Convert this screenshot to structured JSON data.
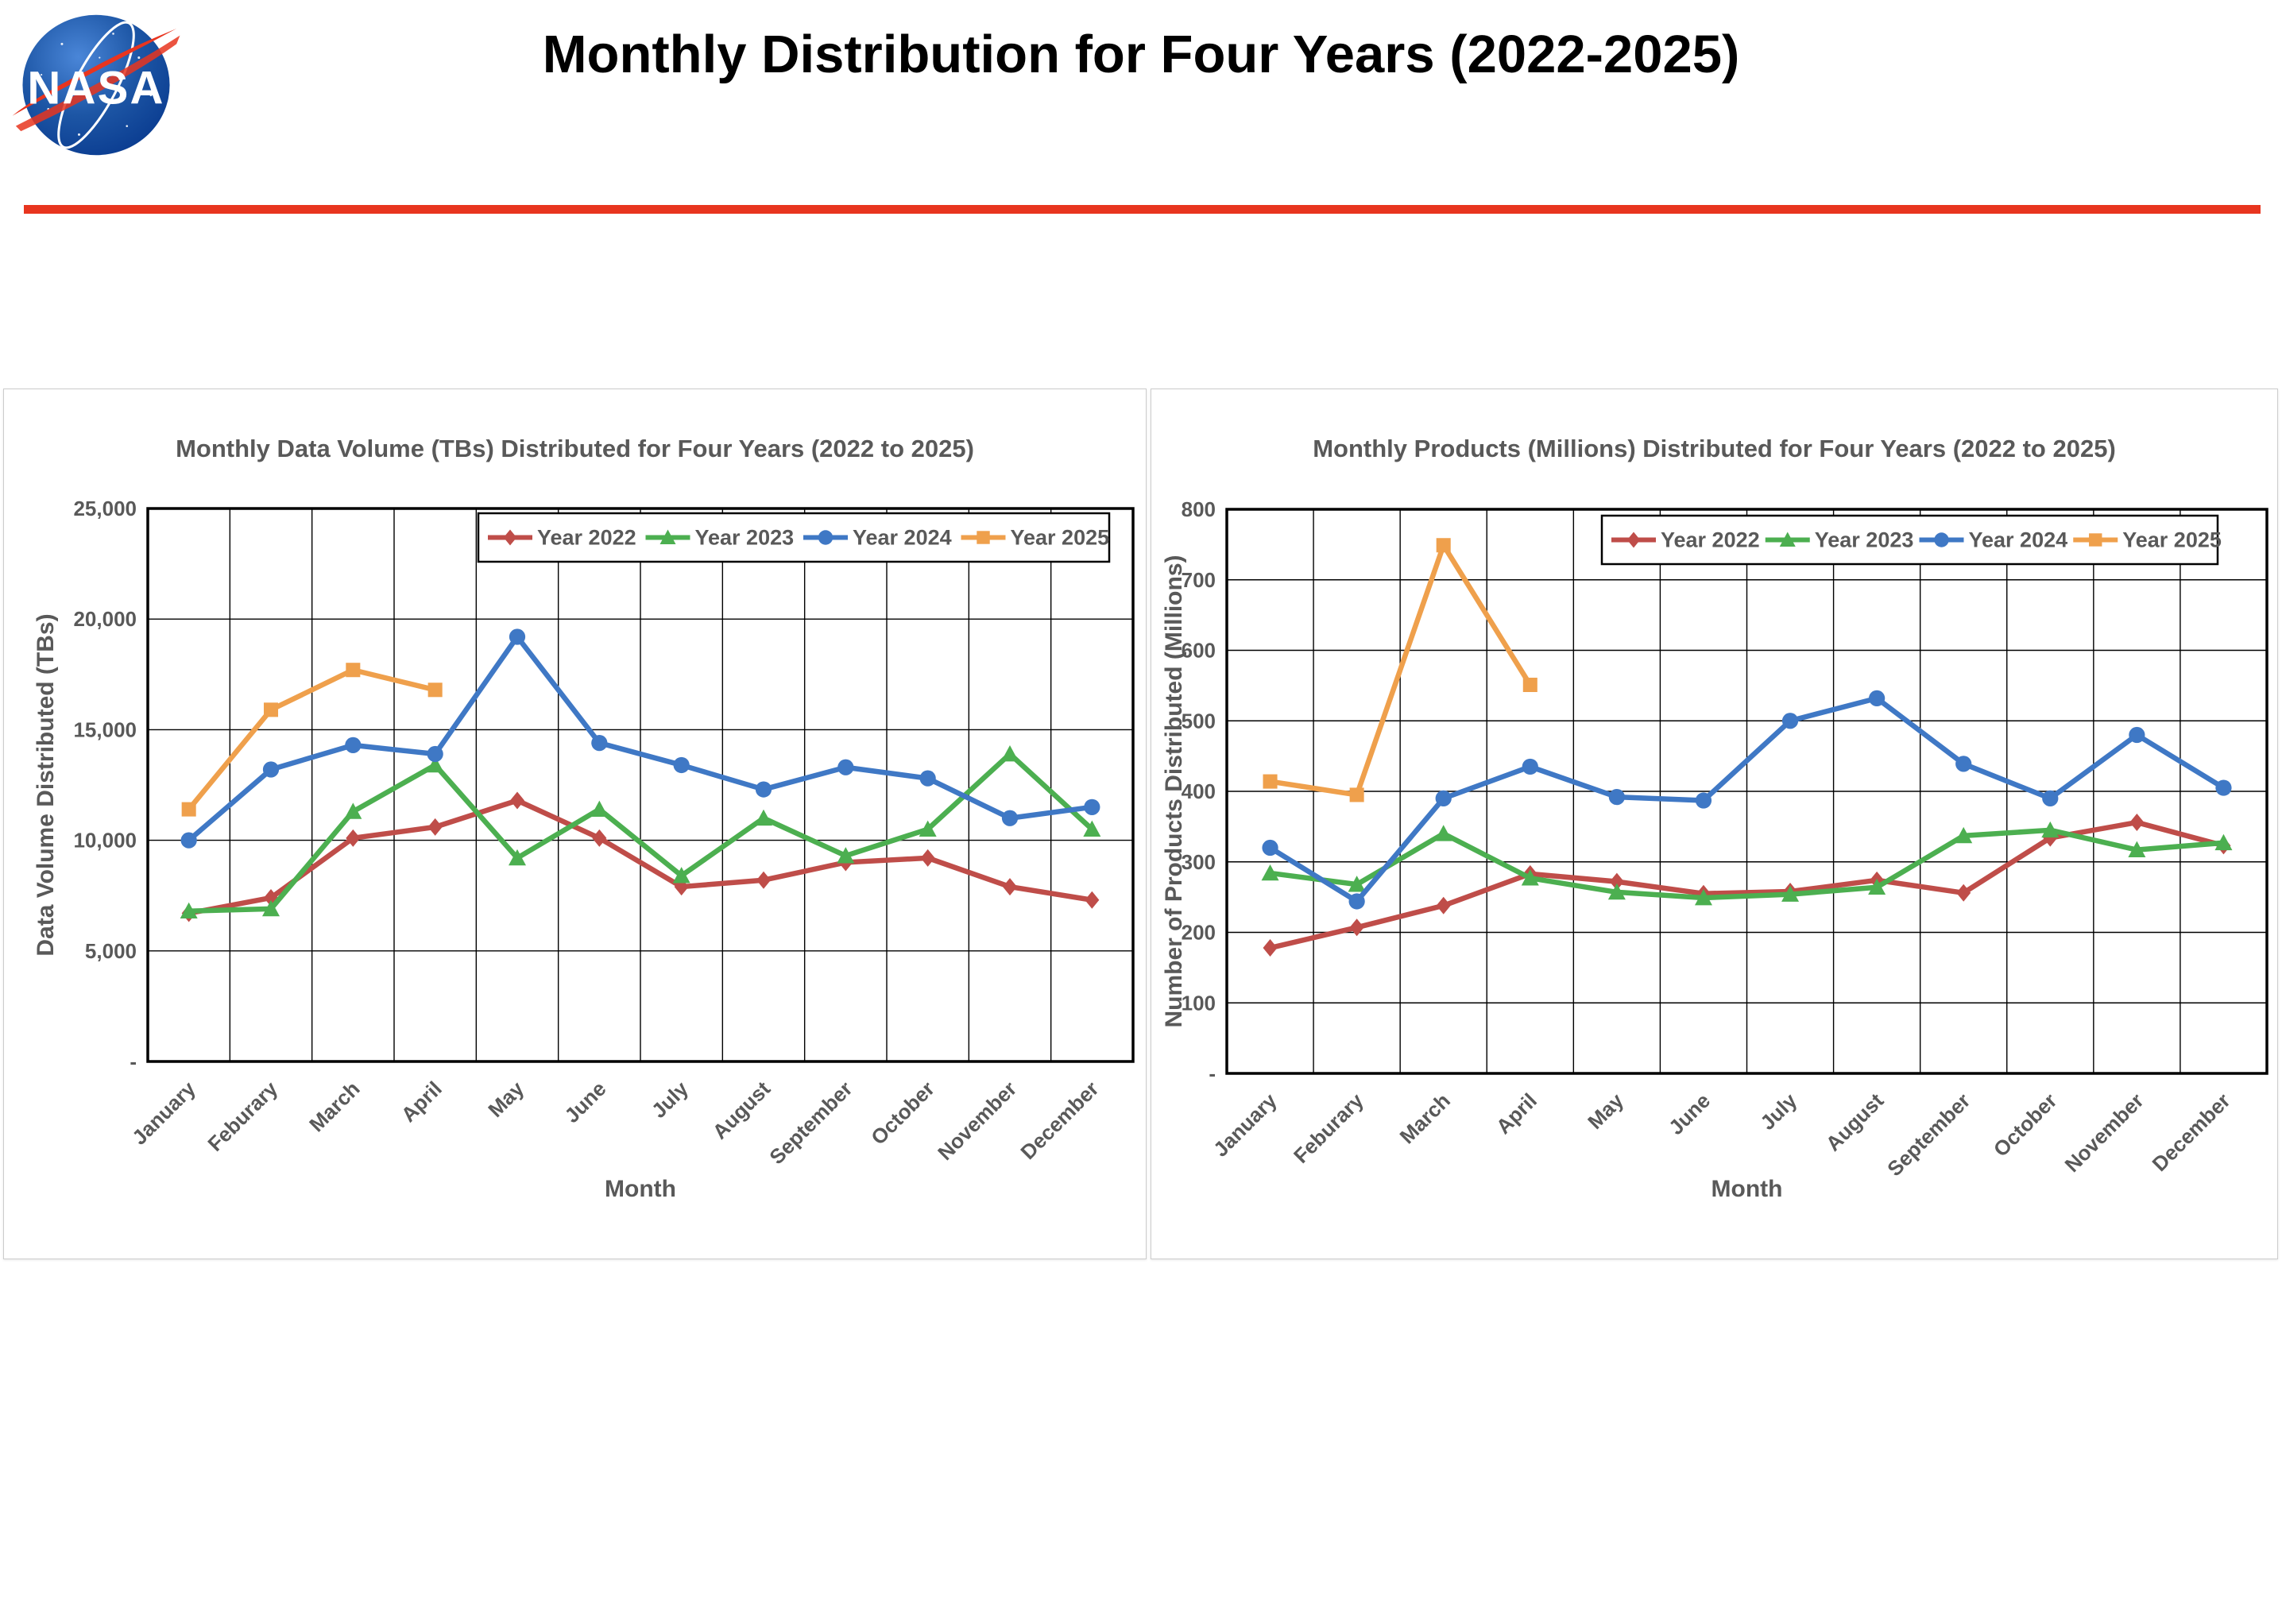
{
  "header": {
    "title": "Monthly Distribution for Four Years (2022-2025)",
    "logo": "nasa-meatball-logo",
    "divider_color": "#e8351f"
  },
  "chart_data": [
    {
      "type": "line",
      "title": "Monthly Data Volume (TBs) Distributed for Four Years (2022 to 2025)",
      "xlabel": "Month",
      "ylabel": "Data Volume Distributed (TBs)",
      "ylim": [
        0,
        25000
      ],
      "ytick_labels": [
        "25,000",
        "20,000",
        "15,000",
        "10,000",
        "5,000",
        "-"
      ],
      "grid": true,
      "legend_position": "top-inside",
      "categories": [
        "January",
        "Feburary",
        "March",
        "April",
        "May",
        "June",
        "July",
        "August",
        "September",
        "October",
        "November",
        "December"
      ],
      "series": [
        {
          "name": "Year 2022",
          "color": "#bf4d49",
          "marker": "diamond",
          "values": [
            6700,
            7400,
            10100,
            10600,
            11800,
            10100,
            7900,
            8200,
            9000,
            9200,
            7900,
            7300
          ]
        },
        {
          "name": "Year 2023",
          "color": "#4caf50",
          "marker": "triangle",
          "values": [
            6800,
            6900,
            11300,
            13400,
            9200,
            11400,
            8400,
            11000,
            9300,
            10500,
            13900,
            10500
          ]
        },
        {
          "name": "Year 2024",
          "color": "#3f78c5",
          "marker": "circle",
          "values": [
            10000,
            13200,
            14300,
            13900,
            19200,
            14400,
            13400,
            12300,
            13300,
            12800,
            11000,
            11500
          ]
        },
        {
          "name": "Year 2025",
          "color": "#efa04c",
          "marker": "square",
          "values": [
            11400,
            15900,
            17700,
            16800
          ]
        }
      ]
    },
    {
      "type": "line",
      "title": "Monthly Products (Millions) Distributed for Four Years (2022 to 2025)",
      "xlabel": "Month",
      "ylabel": "Number of Products Distributed (Millions)",
      "ylim": [
        0,
        800
      ],
      "ytick_labels": [
        "800",
        "700",
        "600",
        "500",
        "400",
        "300",
        "200",
        "100",
        "-"
      ],
      "grid": true,
      "legend_position": "top-inside",
      "categories": [
        "January",
        "Feburary",
        "March",
        "April",
        "May",
        "June",
        "July",
        "August",
        "September",
        "October",
        "November",
        "December"
      ],
      "series": [
        {
          "name": "Year 2022",
          "color": "#bf4d49",
          "marker": "diamond",
          "values": [
            178,
            207,
            238,
            283,
            272,
            255,
            258,
            274,
            256,
            334,
            356,
            323
          ]
        },
        {
          "name": "Year 2023",
          "color": "#4caf50",
          "marker": "triangle",
          "values": [
            284,
            268,
            340,
            277,
            257,
            249,
            254,
            264,
            337,
            345,
            317,
            327
          ]
        },
        {
          "name": "Year 2024",
          "color": "#3f78c5",
          "marker": "circle",
          "values": [
            320,
            244,
            390,
            435,
            392,
            387,
            500,
            532,
            439,
            390,
            480,
            405
          ]
        },
        {
          "name": "Year 2025",
          "color": "#efa04c",
          "marker": "square",
          "values": [
            414,
            395,
            749,
            551
          ]
        }
      ]
    }
  ]
}
